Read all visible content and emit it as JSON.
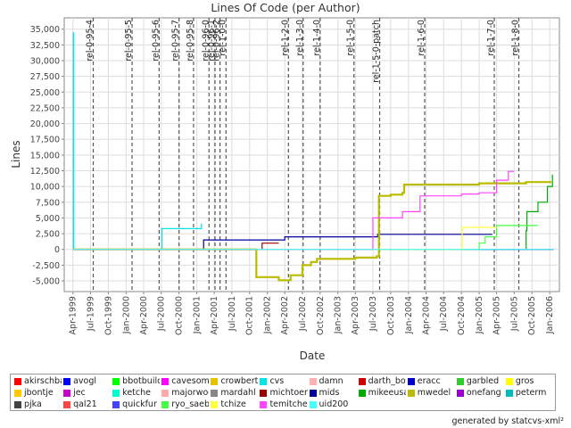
{
  "chart_data": {
    "type": "line",
    "title": "Lines Of Code (per Author)",
    "xlabel": "Date",
    "ylabel": "Lines",
    "x_ticks": [
      "Apr-1999",
      "Jul-1999",
      "Oct-1999",
      "Jan-2000",
      "Apr-2000",
      "Jul-2000",
      "Oct-2000",
      "Jan-2001",
      "Apr-2001",
      "Jul-2001",
      "Oct-2001",
      "Jan-2002",
      "Apr-2002",
      "Jul-2002",
      "Oct-2002",
      "Jan-2003",
      "Apr-2003",
      "Jul-2003",
      "Oct-2003",
      "Jan-2004",
      "Apr-2004",
      "Jul-2004",
      "Oct-2004",
      "Jan-2005",
      "Apr-2005",
      "Jul-2005",
      "Oct-2005",
      "Jan-2006"
    ],
    "y_ticks": [
      -5000,
      -2500,
      0,
      2500,
      5000,
      7500,
      10000,
      12500,
      15000,
      17500,
      20000,
      22500,
      25000,
      27500,
      30000,
      32500,
      35000
    ],
    "y_tick_labels": [
      "-5,000",
      "-2,500",
      "0",
      "2,500",
      "5,000",
      "7,500",
      "10,000",
      "12,500",
      "15,000",
      "17,500",
      "20,000",
      "22,500",
      "25,000",
      "27,500",
      "30,000",
      "32,500",
      "35,000"
    ],
    "xlim": [
      "1999-02-15",
      "2006-02-20"
    ],
    "ylim": [
      -6700,
      36800
    ],
    "grid": true,
    "markers": [
      {
        "label": "rel-0-95-4",
        "date": "1999-07-15"
      },
      {
        "label": "rel-0-95-5",
        "date": "2000-02-01"
      },
      {
        "label": "rel-0-95-6",
        "date": "2000-06-20"
      },
      {
        "label": "rel-0-95-7",
        "date": "2000-10-01"
      },
      {
        "label": "rel-0-95-8",
        "date": "2000-12-15"
      },
      {
        "label": "rel-0-96-0",
        "date": "2001-03-05"
      },
      {
        "label": "rel-0-96-1",
        "date": "2001-04-05"
      },
      {
        "label": "rel-0-96-2",
        "date": "2001-05-01"
      },
      {
        "label": "rel-1-0-0",
        "date": "2001-06-01"
      },
      {
        "label": "rel-1-2-0",
        "date": "2002-04-20"
      },
      {
        "label": "rel-1-3-0",
        "date": "2002-07-05"
      },
      {
        "label": "rel-1-4-0",
        "date": "2002-10-01"
      },
      {
        "label": "rel-1-5-0",
        "date": "2003-03-25"
      },
      {
        "label": "rel-1-5-0-patch",
        "date": "2003-08-05"
      },
      {
        "label": "rel-1-6-0",
        "date": "2004-03-25"
      },
      {
        "label": "rel-1-7-0",
        "date": "2005-03-20"
      },
      {
        "label": "rel-1-8-0",
        "date": "2005-07-25"
      }
    ],
    "legend_position": "bottom",
    "series": [
      {
        "name": "akirschbaum",
        "color": "#ff0000",
        "points": [
          [
            "1999-04-01",
            0
          ],
          [
            "2006-01-20",
            0
          ]
        ]
      },
      {
        "name": "avogl",
        "color": "#0000ff",
        "points": [
          [
            "1999-04-01",
            0
          ],
          [
            "2006-01-20",
            0
          ]
        ]
      },
      {
        "name": "bbotbuilder",
        "color": "#00ff00",
        "points": [
          [
            "1999-04-01",
            0
          ],
          [
            "2006-01-20",
            0
          ]
        ]
      },
      {
        "name": "cavesomething",
        "color": "#ff00ff",
        "points": [
          [
            "1999-04-01",
            0
          ],
          [
            "2006-01-20",
            0
          ]
        ]
      },
      {
        "name": "crowbert",
        "color": "#e6c200",
        "points": [
          [
            "1999-04-01",
            0
          ],
          [
            "2006-01-20",
            0
          ]
        ]
      },
      {
        "name": "cvs",
        "color": "#00e5e5",
        "points": [
          [
            "1999-04-01",
            0
          ],
          [
            "1999-04-03",
            34400
          ],
          [
            "1999-04-05",
            0
          ],
          [
            "2000-07-01",
            0
          ],
          [
            "2000-07-05",
            3300
          ],
          [
            "2001-01-20",
            3300
          ],
          [
            "2001-01-25",
            4100
          ]
        ]
      },
      {
        "name": "damn",
        "color": "#ffb0b0",
        "points": [
          [
            "1999-04-01",
            0
          ],
          [
            "2006-01-20",
            0
          ]
        ]
      },
      {
        "name": "darth_bob",
        "color": "#cc0000",
        "points": [
          [
            "1999-04-01",
            0
          ],
          [
            "2006-01-20",
            0
          ]
        ]
      },
      {
        "name": "eracc",
        "color": "#0000cc",
        "points": [
          [
            "1999-04-01",
            0
          ],
          [
            "2006-01-20",
            0
          ]
        ]
      },
      {
        "name": "garbled",
        "color": "#33cc33",
        "points": [
          [
            "1999-04-01",
            0
          ],
          [
            "2006-01-20",
            0
          ]
        ]
      },
      {
        "name": "gros",
        "color": "#ffff00",
        "points": [
          [
            "1999-04-01",
            0
          ],
          [
            "2006-01-20",
            0
          ]
        ]
      },
      {
        "name": "jbontje",
        "color": "#ffcc00",
        "points": [
          [
            "1999-04-01",
            0
          ],
          [
            "2006-01-20",
            0
          ]
        ]
      },
      {
        "name": "jec",
        "color": "#cc00cc",
        "points": [
          [
            "1999-04-01",
            0
          ],
          [
            "2006-01-20",
            0
          ]
        ]
      },
      {
        "name": "ketche",
        "color": "#00ffcc",
        "points": [
          [
            "1999-04-01",
            0
          ],
          [
            "2006-01-20",
            0
          ]
        ]
      },
      {
        "name": "majorwoo",
        "color": "#ffaaaa",
        "points": [
          [
            "1999-04-01",
            0
          ],
          [
            "2006-01-20",
            0
          ]
        ]
      },
      {
        "name": "mardahl",
        "color": "#888888",
        "points": [
          [
            "1999-04-01",
            0
          ],
          [
            "2006-01-20",
            0
          ]
        ]
      },
      {
        "name": "michtoen",
        "color": "#990000",
        "points": [
          [
            "1999-04-01",
            0
          ],
          [
            "2001-07-01",
            0
          ],
          [
            "2001-12-01",
            0
          ],
          [
            "2001-12-05",
            1000
          ],
          [
            "2002-03-01",
            1000
          ]
        ]
      },
      {
        "name": "mids",
        "color": "#000099",
        "points": [
          [
            "1999-04-01",
            0
          ],
          [
            "2001-02-01",
            0
          ],
          [
            "2001-02-05",
            1500
          ],
          [
            "2002-04-01",
            2000
          ],
          [
            "2003-07-20",
            2000
          ],
          [
            "2003-07-25",
            2400
          ],
          [
            "2005-03-10",
            2400
          ]
        ]
      },
      {
        "name": "mikeeusa",
        "color": "#00aa00",
        "points": [
          [
            "1999-04-01",
            0
          ],
          [
            "2005-08-01",
            0
          ],
          [
            "2005-09-01",
            3000
          ],
          [
            "2005-09-05",
            6000
          ],
          [
            "2005-11-01",
            7500
          ],
          [
            "2005-12-20",
            10000
          ],
          [
            "2006-01-15",
            11900
          ]
        ]
      },
      {
        "name": "mwedel",
        "color": "#bbbb00",
        "points": [
          [
            "1999-04-01",
            0
          ],
          [
            "2001-11-01",
            0
          ],
          [
            "2001-11-05",
            -4400
          ],
          [
            "2002-03-01",
            -4900
          ],
          [
            "2002-05-01",
            -4100
          ],
          [
            "2002-07-01",
            -2500
          ],
          [
            "2002-08-15",
            -2000
          ],
          [
            "2002-09-15",
            -1500
          ],
          [
            "2003-04-01",
            -1300
          ],
          [
            "2003-07-20",
            -1100
          ],
          [
            "2003-08-01",
            8500
          ],
          [
            "2003-10-01",
            8700
          ],
          [
            "2003-12-01",
            9000
          ],
          [
            "2003-12-10",
            10300
          ],
          [
            "2005-01-01",
            10500
          ],
          [
            "2005-07-01",
            10500
          ],
          [
            "2005-09-01",
            10700
          ],
          [
            "2006-01-10",
            10700
          ]
        ]
      },
      {
        "name": "onefang",
        "color": "#9900cc",
        "points": [
          [
            "1999-04-01",
            0
          ],
          [
            "2006-01-20",
            0
          ]
        ]
      },
      {
        "name": "peterm",
        "color": "#00bbbb",
        "points": [
          [
            "1999-04-01",
            0
          ],
          [
            "2006-01-20",
            0
          ]
        ]
      },
      {
        "name": "pjka",
        "color": "#444444",
        "points": [
          [
            "1999-04-01",
            0
          ],
          [
            "2006-01-20",
            0
          ]
        ]
      },
      {
        "name": "qal21",
        "color": "#ff4444",
        "points": [
          [
            "1999-04-01",
            0
          ],
          [
            "2006-01-20",
            0
          ]
        ]
      },
      {
        "name": "quickfur",
        "color": "#4444ff",
        "points": [
          [
            "1999-04-01",
            0
          ],
          [
            "2006-01-20",
            0
          ]
        ]
      },
      {
        "name": "ryo_saeba",
        "color": "#44ff44",
        "points": [
          [
            "1999-04-01",
            0
          ],
          [
            "2003-10-01",
            0
          ],
          [
            "2005-01-01",
            1000
          ],
          [
            "2005-02-01",
            2000
          ],
          [
            "2005-04-01",
            3800
          ],
          [
            "2005-11-01",
            3800
          ]
        ]
      },
      {
        "name": "tchize",
        "color": "#ffff44",
        "points": [
          [
            "1999-04-01",
            0
          ],
          [
            "2004-10-01",
            0
          ],
          [
            "2004-10-05",
            3500
          ],
          [
            "2005-04-01",
            3500
          ]
        ]
      },
      {
        "name": "temitchell",
        "color": "#ff44ff",
        "points": [
          [
            "1999-04-01",
            0
          ],
          [
            "2003-02-01",
            0
          ],
          [
            "2003-07-01",
            5000
          ],
          [
            "2003-12-01",
            6000
          ],
          [
            "2004-03-01",
            8500
          ],
          [
            "2004-10-01",
            8800
          ],
          [
            "2005-01-01",
            9000
          ],
          [
            "2005-04-01",
            11000
          ],
          [
            "2005-06-01",
            12400
          ],
          [
            "2005-07-01",
            12400
          ]
        ]
      },
      {
        "name": "uid200",
        "color": "#44ffff",
        "points": [
          [
            "1999-04-01",
            0
          ],
          [
            "2006-01-20",
            0
          ]
        ]
      }
    ]
  },
  "footer": "generated by statcvs-xml²"
}
